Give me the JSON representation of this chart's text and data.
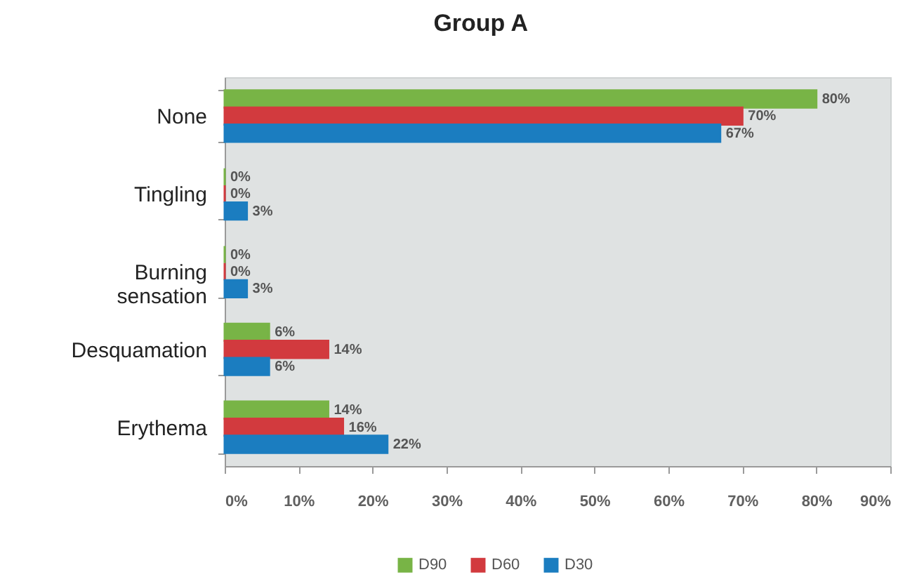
{
  "chart_data": {
    "type": "bar",
    "orientation": "horizontal",
    "title": "Group A",
    "categories": [
      "None",
      "Tingling",
      "Burning sensation",
      "Desquamation",
      "Erythema"
    ],
    "series": [
      {
        "name": "D90",
        "color": "#78b446",
        "values": [
          80,
          0,
          0,
          6,
          14
        ],
        "value_labels": [
          "80%",
          "0%",
          "0%",
          "6%",
          "14%"
        ]
      },
      {
        "name": "D60",
        "color": "#d23a3e",
        "values": [
          70,
          0,
          0,
          14,
          16
        ],
        "value_labels": [
          "70%",
          "0%",
          "0%",
          "14%",
          "16%"
        ]
      },
      {
        "name": "D30",
        "color": "#1b7dc0",
        "values": [
          67,
          3,
          3,
          6,
          22
        ],
        "value_labels": [
          "67%",
          "3%",
          "3%",
          "6%",
          "22%"
        ]
      }
    ],
    "xlim": [
      0,
      90
    ],
    "xticks": [
      {
        "value": 0,
        "label": "0%"
      },
      {
        "value": 10,
        "label": "10%"
      },
      {
        "value": 20,
        "label": "20%"
      },
      {
        "value": 30,
        "label": "30%"
      },
      {
        "value": 40,
        "label": "40%"
      },
      {
        "value": 50,
        "label": "50%"
      },
      {
        "value": 60,
        "label": "60%"
      },
      {
        "value": 70,
        "label": "70%"
      },
      {
        "value": 80,
        "label": "80%"
      },
      {
        "value": 90,
        "label": "90%"
      }
    ],
    "legend": "bottom",
    "grid": false
  }
}
